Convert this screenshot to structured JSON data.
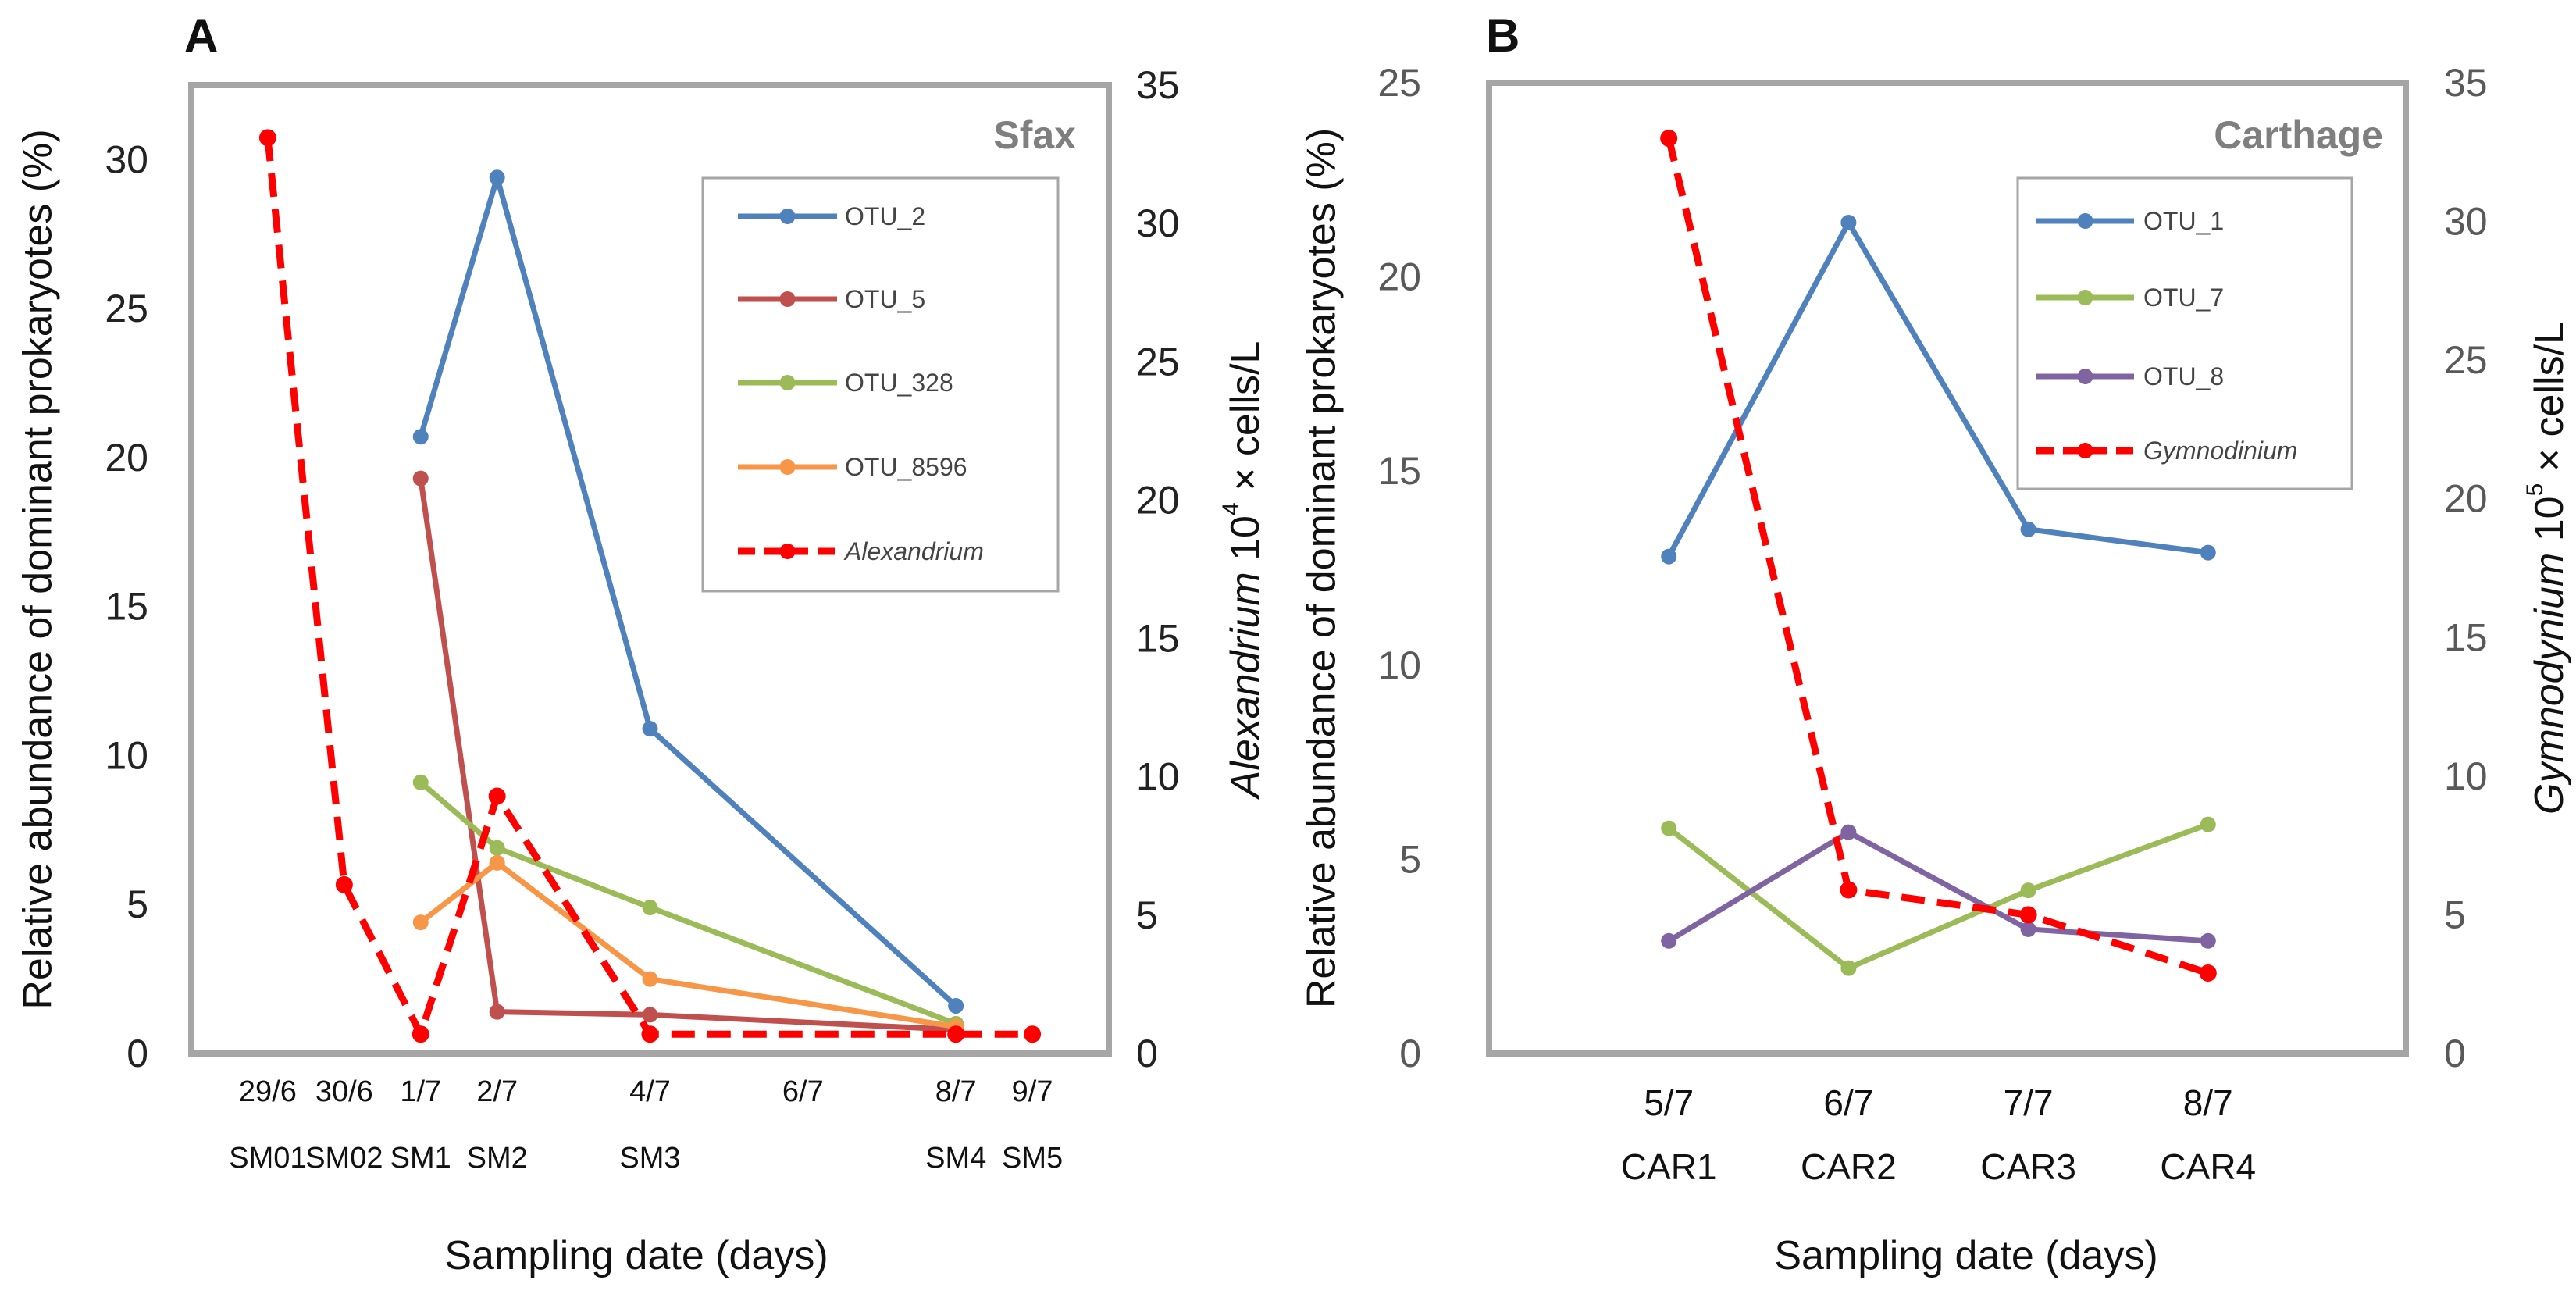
{
  "chart_data": [
    {
      "type": "line",
      "panel_label": "A",
      "site": "Sfax",
      "xlabel": "Sampling date (days)",
      "ylabel": "Relative abundance of dominant prokaryotes (%)",
      "y2label": {
        "italic": "Alexandrium",
        "rest": " 10",
        "sup": "4",
        "tail": " × cells/L"
      },
      "ylim": [
        0,
        32.5
      ],
      "y2lim": [
        0,
        35
      ],
      "yticks": [
        0,
        5,
        10,
        15,
        20,
        25,
        30
      ],
      "y2ticks": [
        0,
        5,
        10,
        15,
        20,
        25,
        30,
        35
      ],
      "xlim_days": [
        -1,
        11
      ],
      "categories": [
        {
          "day": 0,
          "date": "29/6",
          "sample": "SM01"
        },
        {
          "day": 1,
          "date": "30/6",
          "sample": "SM02"
        },
        {
          "day": 2,
          "date": "1/7",
          "sample": "SM1"
        },
        {
          "day": 3,
          "date": "2/7",
          "sample": "SM2"
        },
        {
          "day": 5,
          "date": "4/7",
          "sample": "SM3"
        },
        {
          "day": 7,
          "date": "6/7",
          "sample": ""
        },
        {
          "day": 9,
          "date": "8/7",
          "sample": "SM4"
        },
        {
          "day": 10,
          "date": "9/7",
          "sample": "SM5"
        }
      ],
      "legend_position": "top-right",
      "series": [
        {
          "name": "OTU_2",
          "color": "#4f81bd",
          "axis": "left",
          "dashed": false,
          "x": [
            2,
            3,
            5,
            9
          ],
          "values": [
            20.7,
            29.4,
            10.9,
            1.6
          ]
        },
        {
          "name": "OTU_5",
          "color": "#c0504d",
          "axis": "left",
          "dashed": false,
          "x": [
            2,
            3,
            5,
            9
          ],
          "values": [
            19.3,
            1.4,
            1.3,
            0.8
          ]
        },
        {
          "name": "OTU_328",
          "color": "#9bbb59",
          "axis": "left",
          "dashed": false,
          "x": [
            2,
            3,
            5,
            9
          ],
          "values": [
            9.1,
            6.9,
            4.9,
            1.0
          ]
        },
        {
          "name": "OTU_8596",
          "color": "#f79646",
          "axis": "left",
          "dashed": false,
          "x": [
            2,
            3,
            5,
            9
          ],
          "values": [
            4.4,
            6.4,
            2.5,
            0.9
          ]
        },
        {
          "name": "Alexandrium",
          "italic": true,
          "color": "#ff0000",
          "axis": "right",
          "dashed": true,
          "x": [
            0,
            1,
            2,
            3,
            5,
            9,
            10
          ],
          "values": [
            33.1,
            6.1,
            0.7,
            9.3,
            0.7,
            0.7,
            0.7
          ]
        }
      ]
    },
    {
      "type": "line",
      "panel_label": "B",
      "site": "Carthage",
      "xlabel": "Sampling date (days)",
      "ylabel": "Relative abundance of dominant prokaryotes (%)",
      "y2label": {
        "italic": "Gymnodynium",
        "rest": " 10",
        "sup": "5",
        "tail": " × cells/L"
      },
      "ylim": [
        0,
        25
      ],
      "y2lim": [
        0,
        35
      ],
      "yticks": [
        0,
        5,
        10,
        15,
        20,
        25
      ],
      "y2ticks": [
        0,
        5,
        10,
        15,
        20,
        25,
        30,
        35
      ],
      "xlim_days": [
        0,
        5.1
      ],
      "categories": [
        {
          "day": 1,
          "date": "5/7",
          "sample": "CAR1"
        },
        {
          "day": 2,
          "date": "6/7",
          "sample": "CAR2"
        },
        {
          "day": 3,
          "date": "7/7",
          "sample": "CAR3"
        },
        {
          "day": 4,
          "date": "8/7",
          "sample": "CAR4"
        }
      ],
      "legend_position": "top-right",
      "series": [
        {
          "name": "OTU_1",
          "color": "#4f81bd",
          "axis": "left",
          "dashed": false,
          "x": [
            1,
            2,
            3,
            4
          ],
          "values": [
            12.8,
            21.4,
            13.5,
            12.9
          ]
        },
        {
          "name": "OTU_7",
          "color": "#9bbb59",
          "axis": "left",
          "dashed": false,
          "x": [
            1,
            2,
            3,
            4
          ],
          "values": [
            5.8,
            2.2,
            4.2,
            5.9
          ]
        },
        {
          "name": "OTU_8",
          "color": "#8064a2",
          "axis": "left",
          "dashed": false,
          "x": [
            1,
            2,
            3,
            4
          ],
          "values": [
            2.9,
            5.7,
            3.2,
            2.9
          ]
        },
        {
          "name": "Gymnodinium",
          "italic": true,
          "color": "#ff0000",
          "axis": "right",
          "dashed": true,
          "x": [
            1,
            2,
            3,
            4
          ],
          "values": [
            33.0,
            5.9,
            5.0,
            2.9
          ]
        }
      ]
    }
  ]
}
